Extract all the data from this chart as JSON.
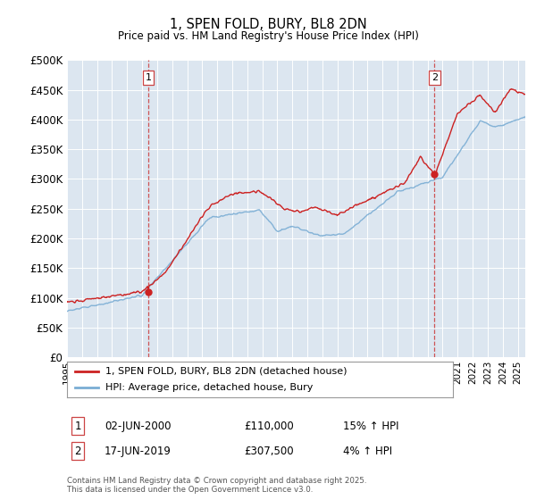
{
  "title": "1, SPEN FOLD, BURY, BL8 2DN",
  "subtitle": "Price paid vs. HM Land Registry's House Price Index (HPI)",
  "background_color": "#f2f2f2",
  "plot_bg_color": "#dce6f0",
  "ylim": [
    0,
    500000
  ],
  "yticks": [
    0,
    50000,
    100000,
    150000,
    200000,
    250000,
    300000,
    350000,
    400000,
    450000,
    500000
  ],
  "xlim_start": 1995.0,
  "xlim_end": 2025.5,
  "sale1_x": 2000.42,
  "sale1_y": 110000,
  "sale2_x": 2019.46,
  "sale2_y": 307500,
  "legend_line1": "1, SPEN FOLD, BURY, BL8 2DN (detached house)",
  "legend_line2": "HPI: Average price, detached house, Bury",
  "annotation1_label": "1",
  "annotation1_date": "02-JUN-2000",
  "annotation1_price": "£110,000",
  "annotation1_hpi": "15% ↑ HPI",
  "annotation2_label": "2",
  "annotation2_date": "17-JUN-2019",
  "annotation2_price": "£307,500",
  "annotation2_hpi": "4% ↑ HPI",
  "footer": "Contains HM Land Registry data © Crown copyright and database right 2025.\nThis data is licensed under the Open Government Licence v3.0.",
  "hpi_color": "#7aadd4",
  "price_color": "#cc2222",
  "vline_color": "#cc4444",
  "grid_color": "#ffffff"
}
